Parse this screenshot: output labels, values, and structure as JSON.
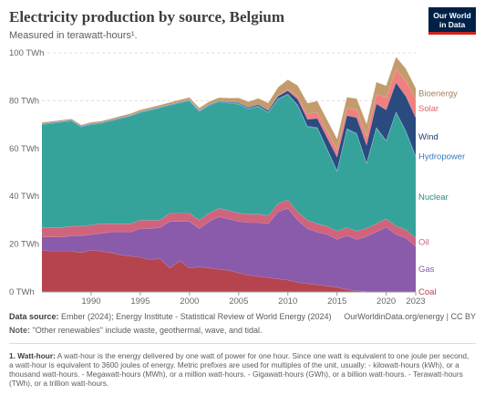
{
  "header": {
    "title": "Electricity production by source, Belgium",
    "subtitle": "Measured in terawatt-hours¹."
  },
  "logo": {
    "line1": "Our World",
    "line2": "in Data"
  },
  "chart_data": {
    "type": "area",
    "stacked": true,
    "x": [
      1985,
      1986,
      1987,
      1988,
      1989,
      1990,
      1991,
      1992,
      1993,
      1994,
      1995,
      1996,
      1997,
      1998,
      1999,
      2000,
      2001,
      2002,
      2003,
      2004,
      2005,
      2006,
      2007,
      2008,
      2009,
      2010,
      2011,
      2012,
      2013,
      2014,
      2015,
      2016,
      2017,
      2018,
      2019,
      2020,
      2021,
      2022,
      2023
    ],
    "series": [
      {
        "name": "Coal",
        "color": "#b5444f",
        "label_color": "#b5444f",
        "values": [
          17.5,
          17,
          17,
          17,
          16.5,
          17.5,
          17,
          16.5,
          15.5,
          15,
          14.5,
          13.5,
          14,
          10,
          13,
          10,
          10.5,
          10,
          9.5,
          9,
          8,
          7,
          6.5,
          6,
          5.5,
          5,
          4,
          3.5,
          3,
          2.5,
          2,
          1,
          0.5,
          0.2,
          0.1,
          0.1,
          0.1,
          0.1,
          0.1
        ]
      },
      {
        "name": "Gas",
        "color": "#8a5aab",
        "label_color": "#8a5aab",
        "values": [
          5.5,
          6,
          6,
          6.5,
          7,
          6.5,
          7.5,
          8.5,
          9.5,
          10,
          12,
          13,
          13,
          19.5,
          16.5,
          19.5,
          16,
          19.5,
          22,
          21.5,
          21.5,
          22,
          22.5,
          22.5,
          28,
          30,
          26,
          23,
          22,
          21.5,
          20,
          22.5,
          21.5,
          23,
          25,
          27,
          24,
          22.5,
          19
        ]
      },
      {
        "name": "Oil",
        "color": "#d0647d",
        "label_color": "#d0647d",
        "values": [
          4,
          4,
          4,
          4,
          4,
          4,
          4,
          3.5,
          3.5,
          3.5,
          3.5,
          3.5,
          3,
          3.5,
          3.5,
          3.5,
          3.5,
          3.5,
          3.5,
          3.5,
          3.5,
          3.5,
          3.5,
          3.5,
          3.5,
          3.5,
          3.5,
          3.5,
          3.5,
          3.5,
          3.5,
          3.5,
          3.5,
          3.5,
          3.5,
          3.5,
          3.5,
          3.5,
          3.5
        ]
      },
      {
        "name": "Nuclear",
        "color": "#35a39a",
        "label_color": "#2b8c84",
        "values": [
          43,
          43.5,
          44,
          44,
          41.5,
          42,
          42,
          43,
          44,
          45,
          45,
          46,
          47,
          45,
          46,
          47,
          45.5,
          45,
          44.5,
          45,
          45.5,
          44,
          45,
          43,
          43.5,
          44,
          44.5,
          39,
          40,
          32,
          25,
          41,
          40.5,
          27,
          40,
          32.5,
          47.5,
          41,
          34
        ]
      },
      {
        "name": "Hydropower",
        "color": "#4c8bc9",
        "label_color": "#3a7abf",
        "values": [
          0.4,
          0.4,
          0.4,
          0.4,
          0.4,
          0.4,
          0.4,
          0.4,
          0.4,
          0.4,
          0.4,
          0.4,
          0.4,
          0.4,
          0.4,
          0.4,
          0.4,
          0.4,
          0.4,
          0.4,
          0.4,
          0.4,
          0.4,
          0.4,
          0.4,
          0.4,
          0.4,
          0.4,
          0.4,
          0.4,
          0.4,
          0.4,
          0.4,
          0.3,
          0.3,
          0.3,
          0.3,
          0.3,
          0.3
        ]
      },
      {
        "name": "Wind",
        "color": "#2a4b80",
        "label_color": "#1f3b66",
        "values": [
          0,
          0,
          0,
          0,
          0,
          0,
          0,
          0,
          0,
          0,
          0,
          0,
          0,
          0,
          0,
          0,
          0,
          0,
          0.1,
          0.2,
          0.3,
          0.4,
          0.5,
          0.6,
          1,
          1.3,
          2.3,
          2.8,
          3.7,
          4.6,
          5.6,
          5.4,
          6.5,
          7.5,
          9.8,
          12.8,
          12.2,
          14.5,
          16
        ]
      },
      {
        "name": "Solar",
        "color": "#f08080",
        "label_color": "#e36363",
        "values": [
          0,
          0,
          0,
          0,
          0,
          0,
          0,
          0,
          0,
          0,
          0,
          0,
          0,
          0,
          0,
          0,
          0,
          0,
          0,
          0,
          0,
          0,
          0,
          0.1,
          0.2,
          0.6,
          1.2,
          2.2,
          2.6,
          2.9,
          3.1,
          3.1,
          3.3,
          3.9,
          4.1,
          5.1,
          5.6,
          6.5,
          7.8
        ]
      },
      {
        "name": "Bioenergy",
        "color": "#c29c6d",
        "label_color": "#a77f52",
        "values": [
          0.5,
          0.5,
          0.5,
          0.5,
          0.5,
          0.6,
          0.6,
          0.6,
          0.7,
          0.7,
          0.8,
          0.8,
          0.8,
          0.9,
          1,
          1,
          1.1,
          1.2,
          1.3,
          1.5,
          2,
          2.3,
          2.6,
          3,
          3.5,
          4,
          4.5,
          4.6,
          4.7,
          4.6,
          4.5,
          4.6,
          4.7,
          4.9,
          5,
          5,
          5.2,
          5,
          4.6
        ]
      }
    ],
    "y_ticks": [
      0,
      20,
      40,
      60,
      80,
      100
    ],
    "y_tick_labels": [
      "0 TWh",
      "20 TWh",
      "40 TWh",
      "60 TWh",
      "80 TWh",
      "100 TWh"
    ],
    "x_ticks": [
      1990,
      1995,
      2000,
      2005,
      2010,
      2015,
      2020,
      2023
    ],
    "ylim": [
      0,
      100
    ],
    "grid": "horizontal-dashed",
    "legend": "right-inline"
  },
  "sources": {
    "label": "Data source:",
    "text": "Ember (2024); Energy Institute - Statistical Review of World Energy (2024)",
    "credit": "OurWorldinData.org/energy | CC BY"
  },
  "note": {
    "label": "Note:",
    "text": "\"Other renewables\" include waste, geothermal, wave, and tidal."
  },
  "footnote": {
    "label": "1. Watt-hour:",
    "text": "A watt-hour is the energy delivered by one watt of power for one hour. Since one watt is equivalent to one joule per second, a watt-hour is equivalent to 3600 joules of energy. Metric prefixes are used for multiples of the unit, usually: - kilowatt-hours (kWh), or a thousand watt-hours. - Megawatt-hours (MWh), or a million watt-hours. - Gigawatt-hours (GWh), or a billion watt-hours. - Terawatt-hours (TWh), or a trillion watt-hours."
  }
}
